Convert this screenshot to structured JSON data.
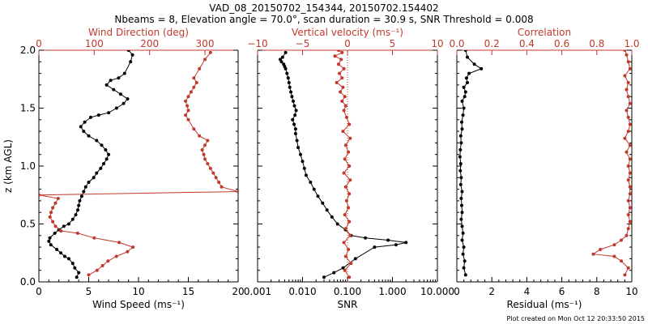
{
  "titles": {
    "line1": "VAD_08_20150702_154344, 20150702.154402",
    "line2": "Nbeams = 8, Elevation angle = 70.0°, scan duration = 30.9 s, SNR Threshold = 0.008"
  },
  "footer": "Plot created on Mon Oct 12 20:33:50 2015",
  "colors": {
    "black": "#000000",
    "red": "#c0392b",
    "panel_red": "#c0392b"
  },
  "chart_data": [
    {
      "type": "line",
      "panel": "wind",
      "title": "",
      "ylabel": "z (km AGL)",
      "ylim": [
        0,
        2.0
      ],
      "yticks": [
        "0.0",
        "0.5",
        "1.0",
        "1.5",
        "2.0"
      ],
      "bottom_axis": {
        "label": "Wind Speed (ms⁻¹)",
        "lim": [
          0,
          20
        ],
        "ticks": [
          "0",
          "5",
          "10",
          "15",
          "20"
        ]
      },
      "top_axis": {
        "label": "Wind Direction (deg)",
        "lim": [
          0,
          360
        ],
        "ticks": [
          "0",
          "100",
          "200",
          "300"
        ]
      },
      "series": [
        {
          "name": "Wind Speed",
          "axis": "bottom",
          "color": "#000000",
          "x": [
            3.8,
            4.0,
            3.6,
            3.4,
            3.0,
            2.6,
            2.2,
            1.8,
            1.2,
            1.0,
            1.1,
            1.6,
            2.0,
            2.5,
            3.0,
            3.4,
            3.7,
            3.9,
            4.0,
            4.1,
            4.3,
            4.5,
            4.7,
            5.0,
            5.5,
            5.8,
            6.2,
            6.5,
            6.8,
            7.0,
            6.7,
            6.3,
            5.8,
            5.0,
            4.5,
            4.2,
            4.6,
            5.2,
            6.0,
            7.0,
            7.8,
            8.5,
            8.9,
            8.2,
            7.5,
            6.8,
            7.2,
            8.0,
            8.6,
            9.2,
            9.4,
            9.0
          ],
          "y": [
            0.04,
            0.08,
            0.12,
            0.16,
            0.2,
            0.22,
            0.25,
            0.28,
            0.32,
            0.35,
            0.38,
            0.42,
            0.45,
            0.48,
            0.5,
            0.54,
            0.58,
            0.62,
            0.66,
            0.7,
            0.74,
            0.78,
            0.82,
            0.86,
            0.9,
            0.94,
            0.98,
            1.02,
            1.06,
            1.1,
            1.14,
            1.18,
            1.22,
            1.26,
            1.3,
            1.34,
            1.38,
            1.42,
            1.44,
            1.46,
            1.5,
            1.54,
            1.58,
            1.62,
            1.66,
            1.7,
            1.74,
            1.76,
            1.8,
            1.9,
            1.96,
            2.0
          ]
        },
        {
          "name": "Wind Direction",
          "axis": "top",
          "color": "#c0392b",
          "x": [
            90,
            105,
            115,
            125,
            140,
            160,
            170,
            145,
            100,
            70,
            40,
            30,
            25,
            20,
            22,
            25,
            30,
            35,
            0,
            360,
            330,
            325,
            320,
            315,
            310,
            305,
            300,
            298,
            295,
            300,
            305,
            290,
            280,
            270,
            265,
            270,
            268,
            265,
            270,
            275,
            280,
            285,
            280,
            290,
            300,
            310
          ],
          "y": [
            0.06,
            0.1,
            0.14,
            0.18,
            0.22,
            0.26,
            0.3,
            0.34,
            0.38,
            0.42,
            0.44,
            0.48,
            0.52,
            0.56,
            0.6,
            0.64,
            0.68,
            0.72,
            0.75,
            0.78,
            0.82,
            0.86,
            0.9,
            0.94,
            0.98,
            1.02,
            1.06,
            1.1,
            1.14,
            1.18,
            1.22,
            1.26,
            1.32,
            1.4,
            1.44,
            1.48,
            1.52,
            1.56,
            1.6,
            1.64,
            1.68,
            1.72,
            1.76,
            1.84,
            1.92,
            1.98
          ]
        }
      ]
    },
    {
      "type": "line",
      "panel": "vv",
      "ylim": [
        0,
        2.0
      ],
      "bottom_axis": {
        "label": "SNR",
        "scale": "log",
        "lim": [
          0.001,
          10
        ],
        "ticks": [
          "0.001",
          "0.010",
          "0.100",
          "1.000",
          "10.000"
        ]
      },
      "top_axis": {
        "label": "Vertical velocity (ms⁻¹)",
        "lim": [
          -10,
          10
        ],
        "ticks": [
          "−10",
          "−5",
          "0",
          "5",
          "10"
        ]
      },
      "series": [
        {
          "name": "SNR",
          "axis": "bottom",
          "color": "#000000",
          "x": [
            0.03,
            0.05,
            0.08,
            0.15,
            0.4,
            1.2,
            2.0,
            0.8,
            0.25,
            0.12,
            0.09,
            0.06,
            0.045,
            0.035,
            0.028,
            0.022,
            0.018,
            0.015,
            0.012,
            0.011,
            0.01,
            0.009,
            0.008,
            0.0075,
            0.007,
            0.007,
            0.0065,
            0.006,
            0.0068,
            0.0072,
            0.0066,
            0.0062,
            0.0058,
            0.0055,
            0.0052,
            0.005,
            0.0048,
            0.0045,
            0.0042,
            0.004,
            0.0038,
            0.0034,
            0.0032,
            0.0036,
            0.0042
          ],
          "y": [
            0.04,
            0.08,
            0.12,
            0.2,
            0.3,
            0.32,
            0.34,
            0.36,
            0.38,
            0.4,
            0.45,
            0.5,
            0.56,
            0.62,
            0.68,
            0.74,
            0.8,
            0.86,
            0.92,
            0.98,
            1.04,
            1.1,
            1.16,
            1.22,
            1.28,
            1.32,
            1.36,
            1.4,
            1.44,
            1.48,
            1.52,
            1.56,
            1.6,
            1.64,
            1.68,
            1.72,
            1.76,
            1.8,
            1.84,
            1.86,
            1.88,
            1.9,
            1.92,
            1.94,
            1.98
          ]
        },
        {
          "name": "Vertical velocity",
          "axis": "top",
          "color": "#c0392b",
          "x": [
            0.2,
            -0.3,
            0.4,
            -0.2,
            0.1,
            -0.4,
            0.3,
            -0.2,
            0.2,
            -0.3,
            0.1,
            -0.1,
            0.2,
            -0.2,
            0.3,
            -0.4,
            0.2,
            -0.3,
            0.1,
            -0.2,
            0.3,
            -0.5,
            0.2,
            -0.1,
            -0.4,
            -0.2,
            -0.6,
            -0.3,
            -0.8,
            -0.5,
            -1.2,
            -0.6,
            -0.9,
            -0.4,
            -1.0,
            -0.7,
            -1.4,
            -0.6,
            -1.0
          ],
          "y": [
            0.04,
            0.1,
            0.16,
            0.22,
            0.28,
            0.34,
            0.4,
            0.46,
            0.52,
            0.58,
            0.64,
            0.7,
            0.76,
            0.82,
            0.88,
            0.94,
            1.0,
            1.06,
            1.12,
            1.18,
            1.24,
            1.3,
            1.36,
            1.42,
            1.48,
            1.52,
            1.56,
            1.6,
            1.64,
            1.68,
            1.72,
            1.76,
            1.8,
            1.84,
            1.88,
            1.92,
            1.95,
            1.98,
            2.0
          ]
        }
      ]
    },
    {
      "type": "line",
      "panel": "corr",
      "ylim": [
        0,
        2.0
      ],
      "bottom_axis": {
        "label": "Residual (ms⁻¹)",
        "lim": [
          0,
          10
        ],
        "ticks": [
          "0",
          "2",
          "4",
          "6",
          "8",
          "10"
        ]
      },
      "top_axis": {
        "label": "Correlation",
        "lim": [
          0,
          1.0
        ],
        "ticks": [
          "0.0",
          "0.2",
          "0.4",
          "0.6",
          "0.8",
          "1.0"
        ]
      },
      "series": [
        {
          "name": "Residual",
          "axis": "bottom",
          "color": "#000000",
          "x": [
            0.5,
            0.4,
            0.45,
            0.35,
            0.4,
            0.3,
            0.35,
            0.3,
            0.25,
            0.3,
            0.28,
            0.25,
            0.3,
            0.22,
            0.25,
            0.2,
            0.22,
            0.18,
            0.2,
            0.25,
            0.22,
            0.3,
            0.28,
            0.35,
            0.4,
            0.3,
            0.45,
            0.5,
            0.4,
            0.6,
            0.55,
            0.7,
            1.4,
            1.0,
            0.6,
            0.5
          ],
          "y": [
            0.06,
            0.12,
            0.18,
            0.24,
            0.3,
            0.36,
            0.42,
            0.48,
            0.54,
            0.6,
            0.66,
            0.72,
            0.78,
            0.84,
            0.9,
            0.96,
            1.02,
            1.08,
            1.14,
            1.2,
            1.26,
            1.32,
            1.38,
            1.44,
            1.5,
            1.56,
            1.6,
            1.64,
            1.68,
            1.72,
            1.76,
            1.8,
            1.84,
            1.88,
            1.94,
            2.0
          ]
        },
        {
          "name": "Correlation",
          "axis": "top",
          "color": "#c0392b",
          "x": [
            0.96,
            0.98,
            0.94,
            0.9,
            0.78,
            0.82,
            0.9,
            0.94,
            0.97,
            0.98,
            0.99,
            0.98,
            0.99,
            0.98,
            0.99,
            0.99,
            0.98,
            0.99,
            0.98,
            0.99,
            0.97,
            0.99,
            0.96,
            0.98,
            0.99,
            0.98,
            0.97,
            0.99,
            0.98,
            0.97,
            0.98,
            0.96,
            0.99,
            0.98,
            0.97,
            0.96
          ],
          "y": [
            0.06,
            0.12,
            0.18,
            0.22,
            0.24,
            0.28,
            0.32,
            0.36,
            0.4,
            0.46,
            0.52,
            0.58,
            0.64,
            0.7,
            0.76,
            0.82,
            0.88,
            0.94,
            1.0,
            1.06,
            1.12,
            1.18,
            1.24,
            1.3,
            1.36,
            1.42,
            1.48,
            1.54,
            1.6,
            1.66,
            1.72,
            1.78,
            1.84,
            1.9,
            1.96,
            2.0
          ]
        }
      ]
    }
  ]
}
